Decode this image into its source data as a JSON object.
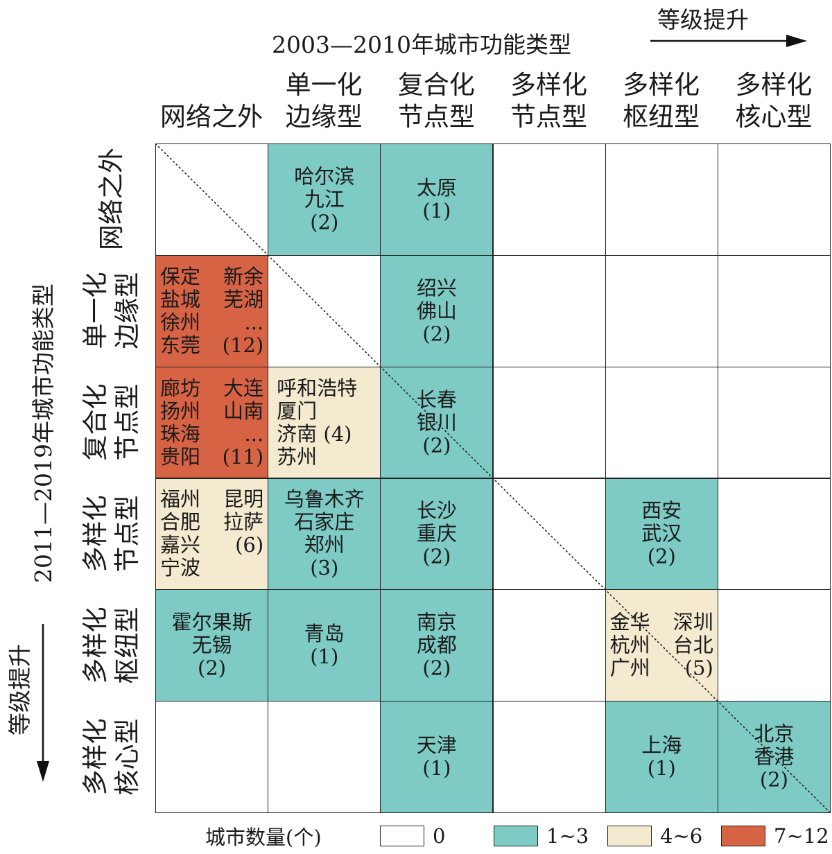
{
  "top_axis": {
    "title": "2003—2010年城市功能类型",
    "direction_label": "等级提升",
    "columns": [
      [
        "网络之外"
      ],
      [
        "单一化",
        "边缘型"
      ],
      [
        "复合化",
        "节点型"
      ],
      [
        "多样化",
        "节点型"
      ],
      [
        "多样化",
        "枢纽型"
      ],
      [
        "多样化",
        "核心型"
      ]
    ]
  },
  "left_axis": {
    "title": "2011—2019年城市功能类型",
    "direction_label": "等级提升",
    "rows": [
      "网络之外",
      "单一化 边缘型",
      "复合化 节点型",
      "多样化 节点型",
      "多样化 枢纽型",
      "多样化 核心型"
    ]
  },
  "colors": {
    "none": "#ffffff",
    "low": "#7ecbc6",
    "mid": "#f4ead0",
    "high": "#d76345"
  },
  "cells": [
    {
      "row": 0,
      "col": 1,
      "level": "low",
      "layout": "center",
      "lines": [
        "哈尔滨",
        "九江",
        "(2)"
      ]
    },
    {
      "row": 0,
      "col": 2,
      "level": "low",
      "layout": "center",
      "lines": [
        "太原",
        "(1)"
      ]
    },
    {
      "row": 1,
      "col": 0,
      "level": "high",
      "layout": "two",
      "pairs": [
        [
          "保定",
          "新余"
        ],
        [
          "盐城",
          "芜湖"
        ],
        [
          "徐州",
          "..."
        ],
        [
          "东莞",
          "(12)"
        ]
      ]
    },
    {
      "row": 1,
      "col": 2,
      "level": "low",
      "layout": "center",
      "lines": [
        "绍兴",
        "佛山",
        "(2)"
      ]
    },
    {
      "row": 2,
      "col": 0,
      "level": "high",
      "layout": "two",
      "pairs": [
        [
          "廊坊",
          "大连"
        ],
        [
          "扬州",
          "山南"
        ],
        [
          "珠海",
          "..."
        ],
        [
          "贵阳",
          "(11)"
        ]
      ]
    },
    {
      "row": 2,
      "col": 1,
      "level": "mid",
      "layout": "mix",
      "lines": [
        "呼和浩特",
        "厦门",
        "济南  (4)",
        "苏州"
      ]
    },
    {
      "row": 2,
      "col": 2,
      "level": "low",
      "layout": "center",
      "lines": [
        "长春",
        "银川",
        "(2)"
      ]
    },
    {
      "row": 3,
      "col": 0,
      "level": "mid",
      "layout": "two",
      "pairs": [
        [
          "福州",
          "昆明"
        ],
        [
          "合肥",
          "拉萨"
        ],
        [
          "嘉兴",
          "(6)"
        ],
        [
          "宁波",
          ""
        ]
      ]
    },
    {
      "row": 3,
      "col": 1,
      "level": "low",
      "layout": "center",
      "lines": [
        "乌鲁木齐",
        "石家庄",
        "郑州",
        "(3)"
      ]
    },
    {
      "row": 3,
      "col": 2,
      "level": "low",
      "layout": "center",
      "lines": [
        "长沙",
        "重庆",
        "(2)"
      ]
    },
    {
      "row": 3,
      "col": 4,
      "level": "low",
      "layout": "center",
      "lines": [
        "西安",
        "武汉",
        "(2)"
      ]
    },
    {
      "row": 4,
      "col": 0,
      "level": "low",
      "layout": "center",
      "lines": [
        "霍尔果斯",
        "无锡",
        "(2)"
      ]
    },
    {
      "row": 4,
      "col": 1,
      "level": "low",
      "layout": "center",
      "lines": [
        "青岛",
        "(1)"
      ]
    },
    {
      "row": 4,
      "col": 2,
      "level": "low",
      "layout": "center",
      "lines": [
        "南京",
        "成都",
        "(2)"
      ]
    },
    {
      "row": 4,
      "col": 4,
      "level": "mid",
      "layout": "two",
      "pairs": [
        [
          "金华",
          "深圳"
        ],
        [
          "杭州",
          "台北"
        ],
        [
          "广州",
          "(5)"
        ]
      ]
    },
    {
      "row": 5,
      "col": 2,
      "level": "low",
      "layout": "center",
      "lines": [
        "天津",
        "(1)"
      ]
    },
    {
      "row": 5,
      "col": 4,
      "level": "low",
      "layout": "center",
      "lines": [
        "上海",
        "(1)"
      ]
    },
    {
      "row": 5,
      "col": 5,
      "level": "low",
      "layout": "center",
      "lines": [
        "北京",
        "香港",
        "(2)"
      ]
    }
  ],
  "legend": {
    "title": "城市数量(个)",
    "items": [
      {
        "level": "none",
        "label": "0"
      },
      {
        "level": "low",
        "label": "1~3"
      },
      {
        "level": "mid",
        "label": "4~6"
      },
      {
        "level": "high",
        "label": "7~12"
      }
    ]
  }
}
